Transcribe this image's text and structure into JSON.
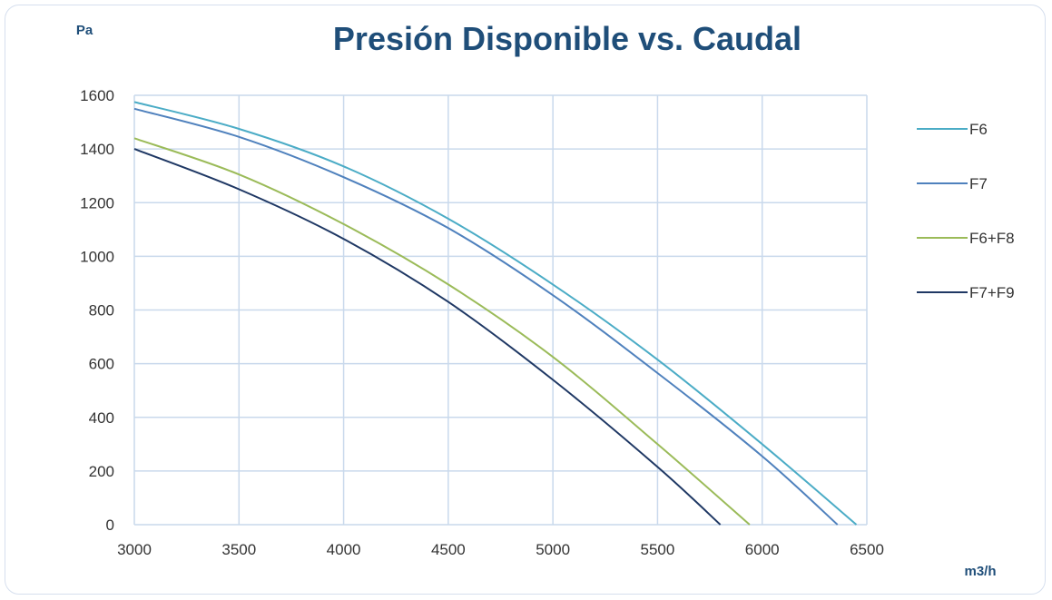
{
  "chart_data": {
    "type": "line",
    "title": "Presión Disponible vs. Caudal",
    "ylabel": "Pa",
    "xlabel": "m3/h",
    "xlim": [
      3000,
      6500
    ],
    "ylim": [
      0,
      1600
    ],
    "x_ticks": [
      "3000",
      "3500",
      "4000",
      "4500",
      "5000",
      "5500",
      "6000",
      "6500"
    ],
    "y_ticks": [
      "0",
      "200",
      "400",
      "600",
      "800",
      "1000",
      "1200",
      "1400",
      "1600"
    ],
    "grid": true,
    "legend_position": "right",
    "series": [
      {
        "name": "F6",
        "color": "#4bacc6",
        "points": [
          [
            3000,
            1575
          ],
          [
            3500,
            1475
          ],
          [
            4000,
            1335
          ],
          [
            4500,
            1140
          ],
          [
            5000,
            895
          ],
          [
            5500,
            615
          ],
          [
            6000,
            300
          ],
          [
            6450,
            0
          ]
        ]
      },
      {
        "name": "F7",
        "color": "#4f81bd",
        "points": [
          [
            3000,
            1550
          ],
          [
            3500,
            1445
          ],
          [
            4000,
            1295
          ],
          [
            4500,
            1105
          ],
          [
            5000,
            855
          ],
          [
            5500,
            565
          ],
          [
            6000,
            255
          ],
          [
            6360,
            0
          ]
        ]
      },
      {
        "name": "F6+F8",
        "color": "#9bbb59",
        "points": [
          [
            3000,
            1440
          ],
          [
            3500,
            1305
          ],
          [
            4000,
            1120
          ],
          [
            4500,
            895
          ],
          [
            5000,
            625
          ],
          [
            5500,
            300
          ],
          [
            5940,
            0
          ]
        ]
      },
      {
        "name": "F7+F9",
        "color": "#1f3864",
        "points": [
          [
            3000,
            1400
          ],
          [
            3500,
            1250
          ],
          [
            4000,
            1065
          ],
          [
            4500,
            830
          ],
          [
            5000,
            540
          ],
          [
            5500,
            215
          ],
          [
            5800,
            0
          ]
        ]
      }
    ]
  }
}
